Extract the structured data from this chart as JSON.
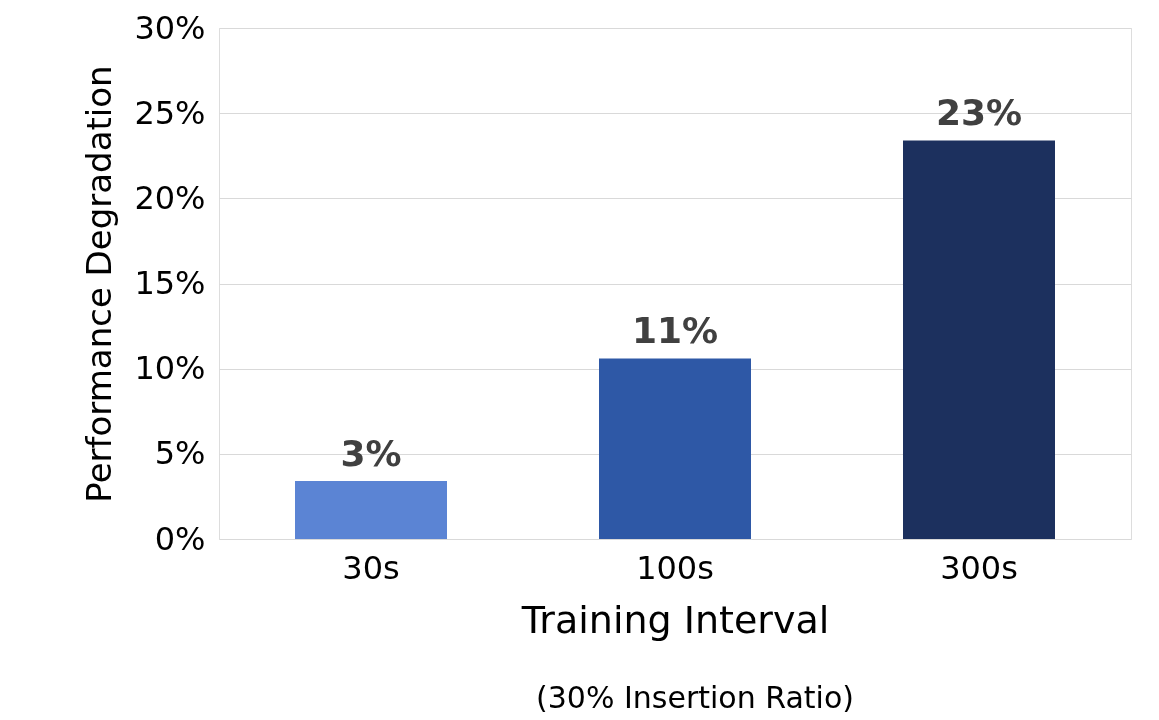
{
  "chart_data": {
    "type": "bar",
    "xlabel": "Training Interval",
    "ylabel": "Performance Degradation",
    "annotations": [
      "(30% Insertion Ratio)"
    ],
    "categories": [
      "30s",
      "100s",
      "300s"
    ],
    "values": [
      3.4,
      10.6,
      23.4
    ],
    "colors": [
      "#5b84d4",
      "#2e58a6",
      "#1c305e"
    ],
    "value_labels": [
      "3%",
      "11%",
      "23%"
    ],
    "ylim": [
      0,
      30
    ],
    "yticks": [
      {
        "value": 0,
        "label": "0%"
      },
      {
        "value": 5,
        "label": "5%"
      },
      {
        "value": 10,
        "label": "10%"
      },
      {
        "value": 15,
        "label": "15%"
      },
      {
        "value": 20,
        "label": "20%"
      },
      {
        "value": 25,
        "label": "25%"
      },
      {
        "value": 30,
        "label": "30%"
      }
    ],
    "grid": "y"
  }
}
